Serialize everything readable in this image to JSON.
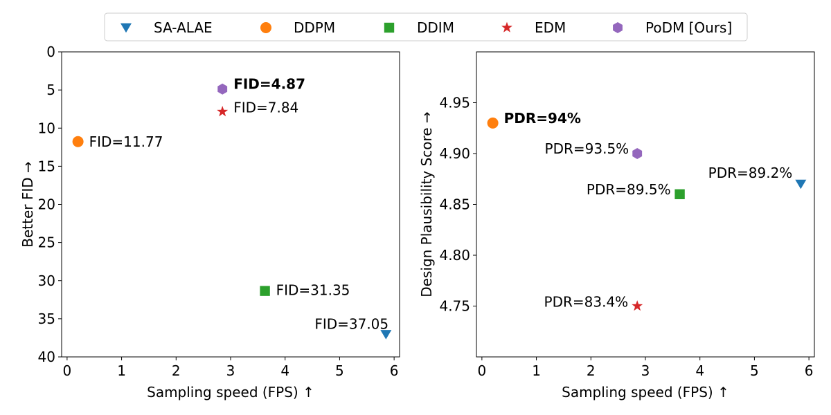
{
  "legend": [
    {
      "name": "SA-ALAE",
      "marker": "triangle-down-icon",
      "color": "#1f77b4"
    },
    {
      "name": "DDPM",
      "marker": "circle-icon",
      "color": "#ff7f0e"
    },
    {
      "name": "DDIM",
      "marker": "square-icon",
      "color": "#2ca02c"
    },
    {
      "name": "EDM",
      "marker": "star-icon",
      "color": "#d62728"
    },
    {
      "name": "PoDM [Ours]",
      "marker": "hexagon-icon",
      "color": "#9467bd"
    }
  ],
  "chart_data": [
    {
      "type": "scatter",
      "xlabel": "Sampling speed (FPS) ↑",
      "ylabel": "Better FID →",
      "xlim": [
        -0.1,
        6.1
      ],
      "ylim": [
        40,
        0
      ],
      "y_inverted": true,
      "xticks": [
        "0",
        "1",
        "2",
        "3",
        "4",
        "5",
        "6"
      ],
      "yticks": [
        "0",
        "5",
        "10",
        "15",
        "20",
        "25",
        "30",
        "35",
        "40"
      ],
      "points": [
        {
          "series": "SA-ALAE",
          "x": 5.85,
          "y": 37.05,
          "label": "FID=37.05",
          "bold": false
        },
        {
          "series": "DDPM",
          "x": 0.2,
          "y": 11.77,
          "label": "FID=11.77",
          "bold": false
        },
        {
          "series": "DDIM",
          "x": 3.63,
          "y": 31.35,
          "label": "FID=31.35",
          "bold": false
        },
        {
          "series": "EDM",
          "x": 2.85,
          "y": 7.84,
          "label": "FID=7.84",
          "bold": false
        },
        {
          "series": "PoDM [Ours]",
          "x": 2.85,
          "y": 4.87,
          "label": "FID=4.87",
          "bold": true
        }
      ]
    },
    {
      "type": "scatter",
      "xlabel": "Sampling speed (FPS) ↑",
      "ylabel": "Design Plausibility Score →",
      "xlim": [
        -0.1,
        6.1
      ],
      "ylim": [
        4.7,
        5.0
      ],
      "y_inverted": false,
      "xticks": [
        "0",
        "1",
        "2",
        "3",
        "4",
        "5",
        "6"
      ],
      "yticks": [
        "4.75",
        "4.80",
        "4.85",
        "4.90",
        "4.95"
      ],
      "points": [
        {
          "series": "SA-ALAE",
          "x": 5.85,
          "y": 4.87,
          "label": "PDR=89.2%",
          "bold": false
        },
        {
          "series": "DDPM",
          "x": 0.2,
          "y": 4.93,
          "label": "PDR=94%",
          "bold": true
        },
        {
          "series": "DDIM",
          "x": 3.63,
          "y": 4.86,
          "label": "PDR=89.5%",
          "bold": false
        },
        {
          "series": "EDM",
          "x": 2.85,
          "y": 4.75,
          "label": "PDR=83.4%",
          "bold": false
        },
        {
          "series": "PoDM [Ours]",
          "x": 2.85,
          "y": 4.9,
          "label": "PDR=93.5%",
          "bold": false
        }
      ]
    }
  ]
}
